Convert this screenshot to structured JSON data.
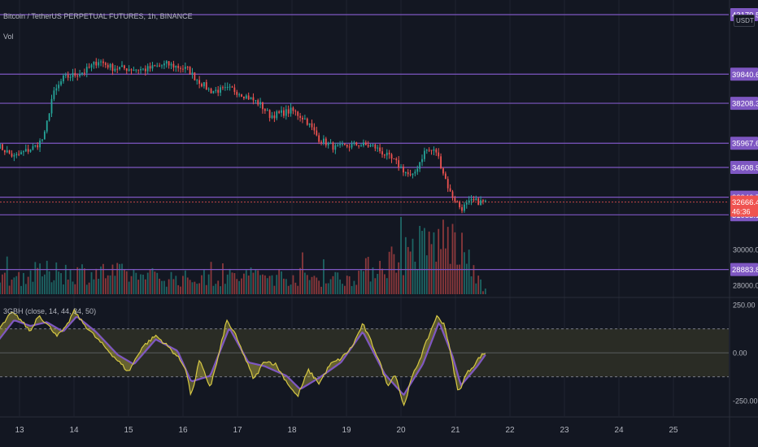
{
  "header": {
    "symbol_title": "Bitcoin / TetherUS PERPETUAL FUTURES, 1h, BINANCE",
    "volume_label": "Vol",
    "currency_label": "USDT",
    "indicator_title": "3GBH (close, 14, 44, 34, 50)"
  },
  "colors": {
    "background": "#131722",
    "grid": "#1f2330",
    "up": "#26a69a",
    "down": "#ef5350",
    "level_line": "#7e57c2",
    "level_tag": "#7e57c2",
    "current_tag": "#ef5350",
    "osc_fast": "#d6c844",
    "osc_slow": "#7e57c2",
    "band_fill": "#2a2c25"
  },
  "price_axis": {
    "min": 27500,
    "max": 44000,
    "tick_labels": [
      {
        "value": 28000,
        "text": "28000.00"
      },
      {
        "value": 30000,
        "text": "30000.00"
      }
    ],
    "top_partial_label": "43179.59",
    "levels": [
      {
        "value": 43179.59,
        "text": "43179.59"
      },
      {
        "value": 39840.6,
        "text": "39840.60"
      },
      {
        "value": 38208.37,
        "text": "38208.37"
      },
      {
        "value": 35967.66,
        "text": "35967.66"
      },
      {
        "value": 34608.97,
        "text": "34608.97"
      },
      {
        "value": 32940.74,
        "text": "32940.74"
      },
      {
        "value": 31953.19,
        "text": "31953.19"
      },
      {
        "value": 28883.83,
        "text": "28883.83"
      }
    ],
    "current": {
      "value": 32666.45,
      "text": "32666.45",
      "countdown": "46:36"
    }
  },
  "date_axis": {
    "labels": [
      "13",
      "14",
      "15",
      "16",
      "17",
      "18",
      "19",
      "20",
      "21",
      "22",
      "23",
      "24",
      "25"
    ]
  },
  "oscillator_axis": {
    "min": -330,
    "max": 280,
    "labels": [
      {
        "value": 250,
        "text": "250.00"
      },
      {
        "value": 0,
        "text": "0.00"
      },
      {
        "value": -250,
        "text": "-250.00"
      }
    ],
    "upper_band": 125,
    "lower_band": -125
  },
  "chart_data": [
    {
      "type": "candlestick",
      "title": "Bitcoin / TetherUS PERPETUAL FUTURES, 1h, BINANCE",
      "x_start": "12",
      "x_end": "21",
      "bars": 208,
      "keypoints_close": [
        {
          "day": 12.6,
          "price": 35850
        },
        {
          "day": 12.9,
          "price": 35200
        },
        {
          "day": 13.3,
          "price": 35800
        },
        {
          "day": 13.45,
          "price": 36300
        },
        {
          "day": 13.6,
          "price": 38600
        },
        {
          "day": 13.8,
          "price": 39600
        },
        {
          "day": 14.2,
          "price": 40000
        },
        {
          "day": 14.45,
          "price": 40600
        },
        {
          "day": 14.7,
          "price": 40200
        },
        {
          "day": 15.3,
          "price": 40100
        },
        {
          "day": 15.7,
          "price": 40400
        },
        {
          "day": 16.1,
          "price": 40100
        },
        {
          "day": 16.2,
          "price": 39700
        },
        {
          "day": 16.5,
          "price": 38900
        },
        {
          "day": 16.9,
          "price": 39000
        },
        {
          "day": 17.1,
          "price": 38700
        },
        {
          "day": 17.4,
          "price": 38200
        },
        {
          "day": 17.6,
          "price": 37500
        },
        {
          "day": 18.0,
          "price": 37800
        },
        {
          "day": 18.25,
          "price": 37300
        },
        {
          "day": 18.5,
          "price": 36200
        },
        {
          "day": 18.8,
          "price": 35700
        },
        {
          "day": 19.2,
          "price": 35900
        },
        {
          "day": 19.5,
          "price": 35800
        },
        {
          "day": 19.9,
          "price": 34900
        },
        {
          "day": 20.2,
          "price": 34000
        },
        {
          "day": 20.45,
          "price": 35600
        },
        {
          "day": 20.65,
          "price": 35500
        },
        {
          "day": 20.9,
          "price": 33200
        },
        {
          "day": 21.1,
          "price": 32300
        },
        {
          "day": 21.3,
          "price": 32700
        },
        {
          "day": 21.55,
          "price": 32666
        }
      ]
    },
    {
      "type": "bar",
      "title": "Vol",
      "volume_relative_keypoints": [
        {
          "day": 12.0,
          "level": 0.15
        },
        {
          "day": 13.4,
          "level": 0.35
        },
        {
          "day": 14.5,
          "level": 0.35
        },
        {
          "day": 16.0,
          "level": 0.25
        },
        {
          "day": 17.5,
          "level": 0.3
        },
        {
          "day": 19.0,
          "level": 0.25
        },
        {
          "day": 20.2,
          "level": 0.7
        },
        {
          "day": 20.9,
          "level": 0.9
        },
        {
          "day": 21.2,
          "level": 0.55
        },
        {
          "day": 21.5,
          "level": 0.1
        }
      ]
    },
    {
      "type": "line",
      "title": "3GBH (close, 14, 44, 34, 50)",
      "ylim": [
        -330,
        280
      ],
      "series": [
        {
          "role": "fast",
          "points": [
            {
              "day": 12.0,
              "value": -60
            },
            {
              "day": 12.25,
              "value": -150
            },
            {
              "day": 12.5,
              "value": 80
            },
            {
              "day": 12.7,
              "value": 150
            },
            {
              "day": 12.85,
              "value": 210
            },
            {
              "day": 13.0,
              "value": 180
            },
            {
              "day": 13.2,
              "value": 110
            },
            {
              "day": 13.35,
              "value": 200
            },
            {
              "day": 13.5,
              "value": 150
            },
            {
              "day": 13.7,
              "value": 90
            },
            {
              "day": 13.85,
              "value": 130
            },
            {
              "day": 14.0,
              "value": 220
            },
            {
              "day": 14.15,
              "value": 160
            },
            {
              "day": 14.4,
              "value": 80
            },
            {
              "day": 14.6,
              "value": 20
            },
            {
              "day": 14.8,
              "value": -40
            },
            {
              "day": 15.0,
              "value": -100
            },
            {
              "day": 15.25,
              "value": 30
            },
            {
              "day": 15.5,
              "value": 90
            },
            {
              "day": 15.7,
              "value": 40
            },
            {
              "day": 15.9,
              "value": -20
            },
            {
              "day": 16.05,
              "value": -80
            },
            {
              "day": 16.15,
              "value": -230
            },
            {
              "day": 16.3,
              "value": -40
            },
            {
              "day": 16.5,
              "value": -180
            },
            {
              "day": 16.65,
              "value": -20
            },
            {
              "day": 16.8,
              "value": 170
            },
            {
              "day": 16.95,
              "value": 100
            },
            {
              "day": 17.1,
              "value": 0
            },
            {
              "day": 17.3,
              "value": -140
            },
            {
              "day": 17.5,
              "value": -40
            },
            {
              "day": 17.7,
              "value": -60
            },
            {
              "day": 17.9,
              "value": -150
            },
            {
              "day": 18.1,
              "value": -230
            },
            {
              "day": 18.3,
              "value": -90
            },
            {
              "day": 18.5,
              "value": -160
            },
            {
              "day": 18.7,
              "value": -60
            },
            {
              "day": 18.9,
              "value": -30
            },
            {
              "day": 19.1,
              "value": 30
            },
            {
              "day": 19.3,
              "value": 150
            },
            {
              "day": 19.45,
              "value": 60
            },
            {
              "day": 19.6,
              "value": -40
            },
            {
              "day": 19.75,
              "value": -170
            },
            {
              "day": 19.9,
              "value": -110
            },
            {
              "day": 20.05,
              "value": -280
            },
            {
              "day": 20.2,
              "value": -130
            },
            {
              "day": 20.35,
              "value": -30
            },
            {
              "day": 20.5,
              "value": 80
            },
            {
              "day": 20.65,
              "value": 190
            },
            {
              "day": 20.8,
              "value": 150
            },
            {
              "day": 20.95,
              "value": -60
            },
            {
              "day": 21.05,
              "value": -210
            },
            {
              "day": 21.2,
              "value": -110
            },
            {
              "day": 21.35,
              "value": -60
            },
            {
              "day": 21.45,
              "value": -20
            },
            {
              "day": 21.55,
              "value": 0
            }
          ]
        },
        {
          "role": "slow",
          "points": [
            {
              "day": 12.0,
              "value": -40
            },
            {
              "day": 12.3,
              "value": -110
            },
            {
              "day": 12.6,
              "value": 60
            },
            {
              "day": 12.9,
              "value": 170
            },
            {
              "day": 13.2,
              "value": 140
            },
            {
              "day": 13.5,
              "value": 160
            },
            {
              "day": 13.8,
              "value": 110
            },
            {
              "day": 14.05,
              "value": 190
            },
            {
              "day": 14.4,
              "value": 110
            },
            {
              "day": 14.8,
              "value": -10
            },
            {
              "day": 15.1,
              "value": -60
            },
            {
              "day": 15.5,
              "value": 70
            },
            {
              "day": 15.9,
              "value": 10
            },
            {
              "day": 16.15,
              "value": -150
            },
            {
              "day": 16.5,
              "value": -120
            },
            {
              "day": 16.85,
              "value": 130
            },
            {
              "day": 17.2,
              "value": -50
            },
            {
              "day": 17.5,
              "value": -70
            },
            {
              "day": 17.9,
              "value": -120
            },
            {
              "day": 18.15,
              "value": -190
            },
            {
              "day": 18.5,
              "value": -130
            },
            {
              "day": 18.9,
              "value": -50
            },
            {
              "day": 19.3,
              "value": 110
            },
            {
              "day": 19.7,
              "value": -110
            },
            {
              "day": 20.05,
              "value": -220
            },
            {
              "day": 20.4,
              "value": -60
            },
            {
              "day": 20.7,
              "value": 160
            },
            {
              "day": 20.95,
              "value": -20
            },
            {
              "day": 21.1,
              "value": -170
            },
            {
              "day": 21.4,
              "value": -70
            },
            {
              "day": 21.55,
              "value": -10
            }
          ]
        }
      ]
    }
  ]
}
